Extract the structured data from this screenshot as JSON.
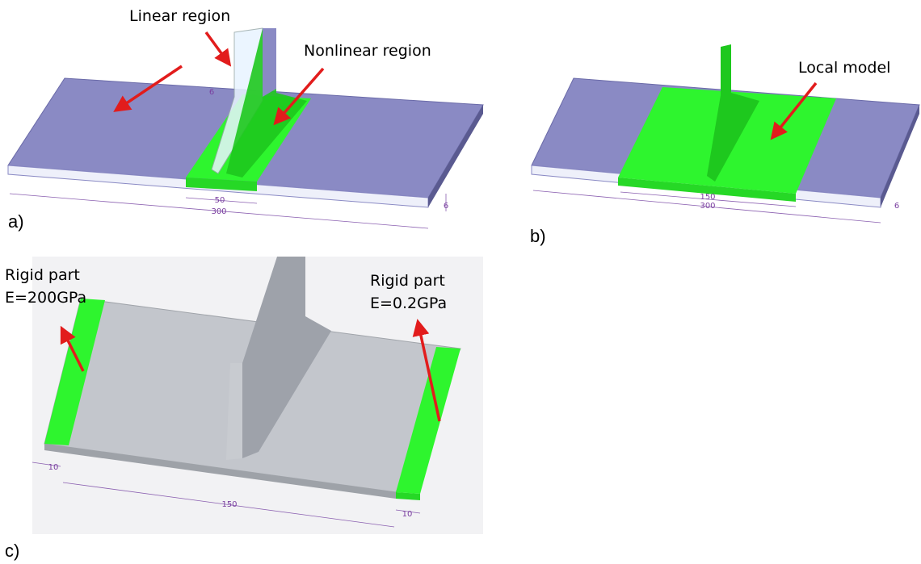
{
  "panels": [
    {
      "label": "a)",
      "annotations": [
        "Linear region",
        "Nonlinear region"
      ],
      "dimensions": [
        "50",
        "300",
        "6",
        "6"
      ]
    },
    {
      "label": "b)",
      "annotations": [
        "Local model"
      ],
      "dimensions": [
        "150",
        "300",
        "6"
      ]
    },
    {
      "label": "c)",
      "annotations": [
        [
          "Rigid part",
          "E=200GPa"
        ],
        [
          "Rigid part",
          "E=0.2GPa"
        ]
      ],
      "dimensions": [
        "10",
        "150",
        "10"
      ]
    }
  ]
}
